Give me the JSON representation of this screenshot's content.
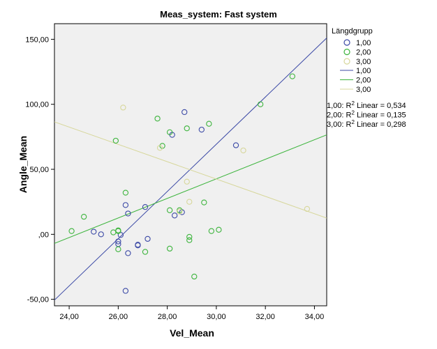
{
  "chart_data": {
    "type": "scatter",
    "title": "Meas_system: Fast system",
    "xlabel": "Vel_Mean",
    "ylabel": "Angle_Mean",
    "xlim": [
      23.4,
      34.5
    ],
    "ylim": [
      -55,
      162
    ],
    "x_ticks": [
      24,
      26,
      28,
      30,
      32,
      34
    ],
    "x_tick_labels": [
      "24,00",
      "26,00",
      "28,00",
      "30,00",
      "32,00",
      "34,00"
    ],
    "y_ticks": [
      -50,
      0,
      50,
      100,
      150
    ],
    "y_tick_labels": [
      "-50,00",
      ",00",
      "50,00",
      "100,00",
      "150,00"
    ],
    "plot_background": "#f0f0f0",
    "grid": false,
    "legend_title": "Längdgrupp",
    "legend_placement": "right",
    "series": [
      {
        "name": "1,00",
        "color": "#3c4aa6",
        "points": [
          [
            28.7,
            94
          ],
          [
            29.4,
            80.5
          ],
          [
            28.2,
            76.5
          ],
          [
            30.8,
            68.5
          ],
          [
            26.3,
            22.5
          ],
          [
            27.1,
            21
          ],
          [
            28.6,
            17
          ],
          [
            26.4,
            16
          ],
          [
            28.3,
            14.5
          ],
          [
            25.0,
            2
          ],
          [
            25.3,
            0
          ],
          [
            26.1,
            -0.5
          ],
          [
            27.2,
            -3.5
          ],
          [
            26.0,
            -5.5
          ],
          [
            26.0,
            -7.5
          ],
          [
            26.8,
            -8.5
          ],
          [
            26.8,
            -8
          ],
          [
            26.4,
            -14.5
          ],
          [
            26.3,
            -43.5
          ]
        ],
        "fit": {
          "x": [
            23.4,
            34.5
          ],
          "y": [
            -50.6,
            151
          ],
          "label": "R² Linear = 0,534"
        }
      },
      {
        "name": "2,00",
        "color": "#3cb43c",
        "points": [
          [
            27.6,
            89
          ],
          [
            29.7,
            85
          ],
          [
            28.8,
            81.5
          ],
          [
            28.1,
            78.5
          ],
          [
            25.9,
            72
          ],
          [
            27.8,
            68
          ],
          [
            31.8,
            100
          ],
          [
            33.1,
            121.5
          ],
          [
            26.3,
            32
          ],
          [
            28.5,
            18.5
          ],
          [
            29.5,
            24.5
          ],
          [
            28.1,
            18.5
          ],
          [
            24.6,
            13.5
          ],
          [
            24.1,
            2.5
          ],
          [
            25.8,
            1.5
          ],
          [
            26.0,
            2.5
          ],
          [
            26.0,
            3
          ],
          [
            30.1,
            3.5
          ],
          [
            29.8,
            2.5
          ],
          [
            28.9,
            -2
          ],
          [
            28.9,
            -4.5
          ],
          [
            26.0,
            -11.5
          ],
          [
            27.1,
            -13.5
          ],
          [
            28.1,
            -11
          ],
          [
            29.1,
            -32.5
          ]
        ],
        "fit": {
          "x": [
            23.4,
            34.5
          ],
          "y": [
            -7,
            76.5
          ],
          "label": "R² Linear = 0,135"
        }
      },
      {
        "name": "3,00",
        "color": "#d7d79b",
        "points": [
          [
            26.2,
            97.5
          ],
          [
            27.7,
            66.5
          ],
          [
            31.1,
            64.5
          ],
          [
            28.8,
            40.5
          ],
          [
            28.9,
            25
          ],
          [
            28.5,
            17.5
          ],
          [
            33.7,
            19.5
          ]
        ],
        "fit": {
          "x": [
            23.4,
            34.5
          ],
          "y": [
            86.5,
            12.5
          ],
          "label": "R² Linear = 0,298"
        }
      }
    ],
    "r2_prefixes": [
      "1,00: R",
      "2,00: R",
      "3,00: R"
    ],
    "r2_rest": [
      " Linear = 0,534",
      " Linear = 0,135",
      " Linear = 0,298"
    ],
    "r2_superscript": "2"
  }
}
